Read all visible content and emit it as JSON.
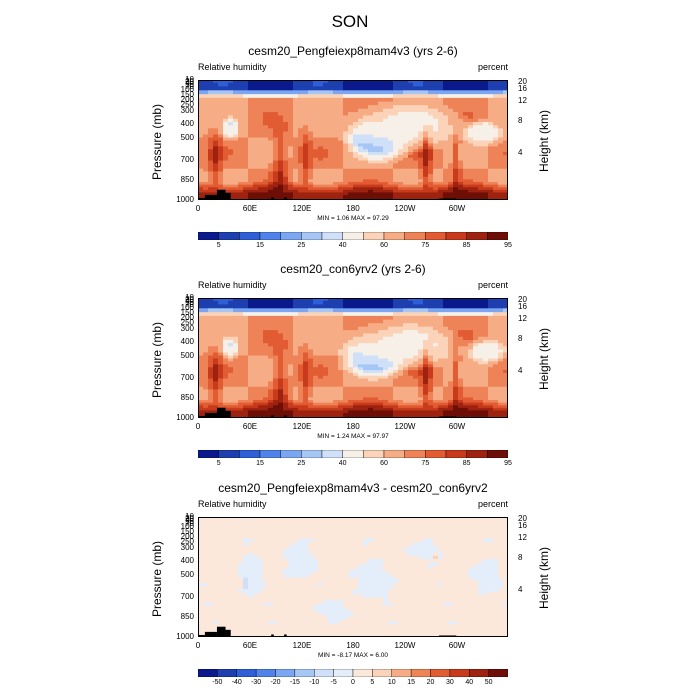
{
  "title": "SON",
  "colors": {
    "seq": [
      "#0a1a8c",
      "#1d3fb0",
      "#2f5fd6",
      "#4f83ea",
      "#7aa6f2",
      "#a6c6f6",
      "#cfe0f8",
      "#f6f0e8",
      "#fbd3b8",
      "#f6ac84",
      "#ee8358",
      "#e15b33",
      "#c83a1c",
      "#9e2210",
      "#6d0f07"
    ],
    "diff": [
      "#0a1a8c",
      "#1d3fb0",
      "#2f5fd6",
      "#4f83ea",
      "#7aa6f2",
      "#a6c6f6",
      "#cfe0f8",
      "#e4eefb",
      "#fbe8da",
      "#fbd3b8",
      "#f6ac84",
      "#ee8358",
      "#e15b33",
      "#c83a1c",
      "#9e2210",
      "#6d0f07"
    ],
    "terrain": "#000000"
  },
  "chart_data": [
    {
      "type": "heatmap",
      "panel_id": "p1",
      "title": "cesm20_Pengfeiexp8mam4v3 (yrs 2-6)",
      "left_label": "Relative humidity",
      "right_label": "percent",
      "ylabel": "Pressure (mb)",
      "y2label": "Height (km)",
      "x_ticks": [
        "0",
        "60E",
        "120E",
        "180",
        "120W",
        "60W"
      ],
      "y_ticks": [
        "10",
        "20",
        "30",
        "50",
        "70",
        "100",
        "150",
        "200",
        "250",
        "300",
        "400",
        "500",
        "700",
        "850",
        "1000"
      ],
      "y2_ticks": [
        "20",
        "16",
        "12",
        "8",
        "4"
      ],
      "min": 1.06,
      "max": 97.29,
      "minmax_text": "MIN =   1.06  MAX =  97.29",
      "colorbar_labels": [
        "5",
        "15",
        "25",
        "40",
        "60",
        "75",
        "85",
        "95"
      ],
      "features": [
        {
          "kind": "background",
          "value": 70
        },
        {
          "kind": "blob",
          "lon": 205,
          "p": 430,
          "rlon": 30,
          "rp": 140,
          "value": 10
        },
        {
          "kind": "blob",
          "lon": 210,
          "p": 450,
          "rlon": 45,
          "rp": 220,
          "value": 30
        },
        {
          "kind": "blob",
          "lon": 240,
          "p": 350,
          "rlon": 80,
          "rp": 200,
          "value": 45
        },
        {
          "kind": "blob",
          "lon": 38,
          "p": 360,
          "rlon": 8,
          "rp": 70,
          "value": 20
        },
        {
          "kind": "blob",
          "lon": 38,
          "p": 360,
          "rlon": 14,
          "rp": 110,
          "value": 45
        },
        {
          "kind": "blob",
          "lon": 330,
          "p": 380,
          "rlon": 20,
          "rp": 80,
          "value": 20
        },
        {
          "kind": "blob",
          "lon": 330,
          "p": 400,
          "rlon": 30,
          "rp": 120,
          "value": 45
        },
        {
          "kind": "column",
          "lon": 20,
          "width": 12,
          "value": 85
        },
        {
          "kind": "column",
          "lon": 95,
          "width": 14,
          "value": 88
        },
        {
          "kind": "column",
          "lon": 125,
          "width": 10,
          "value": 82
        },
        {
          "kind": "column",
          "lon": 265,
          "width": 10,
          "value": 88
        },
        {
          "kind": "column",
          "lon": 300,
          "width": 8,
          "value": 85
        },
        {
          "kind": "boundary",
          "value": 90
        },
        {
          "kind": "strat",
          "value": 5
        }
      ],
      "terrain": [
        {
          "lon0": 0,
          "lon1": 8,
          "p": 980
        },
        {
          "lon0": 8,
          "lon1": 22,
          "p": 950
        },
        {
          "lon0": 22,
          "lon1": 32,
          "p": 900
        },
        {
          "lon0": 32,
          "lon1": 38,
          "p": 930
        },
        {
          "lon0": 85,
          "lon1": 88,
          "p": 975
        },
        {
          "lon0": 100,
          "lon1": 103,
          "p": 975
        },
        {
          "lon0": 280,
          "lon1": 300,
          "p": 985
        }
      ]
    },
    {
      "type": "heatmap",
      "panel_id": "p2",
      "title": "cesm20_con6yrv2 (yrs 2-6)",
      "left_label": "Relative humidity",
      "right_label": "percent",
      "ylabel": "Pressure (mb)",
      "y2label": "Height (km)",
      "x_ticks": [
        "0",
        "60E",
        "120E",
        "180",
        "120W",
        "60W"
      ],
      "y_ticks": [
        "10",
        "20",
        "30",
        "50",
        "70",
        "100",
        "150",
        "200",
        "250",
        "300",
        "400",
        "500",
        "700",
        "850",
        "1000"
      ],
      "y2_ticks": [
        "20",
        "16",
        "12",
        "8",
        "4"
      ],
      "min": 1.24,
      "max": 97.97,
      "minmax_text": "MIN =   1.24  MAX =  97.97",
      "colorbar_labels": [
        "5",
        "15",
        "25",
        "40",
        "60",
        "75",
        "85",
        "95"
      ],
      "features": [
        {
          "kind": "background",
          "value": 70
        },
        {
          "kind": "blob",
          "lon": 205,
          "p": 450,
          "rlon": 30,
          "rp": 130,
          "value": 10
        },
        {
          "kind": "blob",
          "lon": 205,
          "p": 450,
          "rlon": 45,
          "rp": 210,
          "value": 30
        },
        {
          "kind": "blob",
          "lon": 235,
          "p": 360,
          "rlon": 80,
          "rp": 200,
          "value": 45
        },
        {
          "kind": "blob",
          "lon": 38,
          "p": 370,
          "rlon": 8,
          "rp": 70,
          "value": 20
        },
        {
          "kind": "blob",
          "lon": 38,
          "p": 370,
          "rlon": 14,
          "rp": 110,
          "value": 45
        },
        {
          "kind": "blob",
          "lon": 335,
          "p": 400,
          "rlon": 18,
          "rp": 80,
          "value": 20
        },
        {
          "kind": "blob",
          "lon": 335,
          "p": 400,
          "rlon": 28,
          "rp": 120,
          "value": 45
        },
        {
          "kind": "column",
          "lon": 20,
          "width": 12,
          "value": 85
        },
        {
          "kind": "column",
          "lon": 95,
          "width": 14,
          "value": 88
        },
        {
          "kind": "column",
          "lon": 125,
          "width": 10,
          "value": 82
        },
        {
          "kind": "column",
          "lon": 265,
          "width": 10,
          "value": 88
        },
        {
          "kind": "column",
          "lon": 300,
          "width": 8,
          "value": 85
        },
        {
          "kind": "boundary",
          "value": 90
        },
        {
          "kind": "strat",
          "value": 5
        }
      ],
      "terrain": [
        {
          "lon0": 0,
          "lon1": 8,
          "p": 980
        },
        {
          "lon0": 8,
          "lon1": 22,
          "p": 950
        },
        {
          "lon0": 22,
          "lon1": 32,
          "p": 900
        },
        {
          "lon0": 32,
          "lon1": 38,
          "p": 930
        },
        {
          "lon0": 85,
          "lon1": 88,
          "p": 975
        },
        {
          "lon0": 100,
          "lon1": 103,
          "p": 975
        },
        {
          "lon0": 280,
          "lon1": 300,
          "p": 985
        }
      ]
    },
    {
      "type": "heatmap",
      "panel_id": "p3",
      "title": "cesm20_Pengfeiexp8mam4v3 - cesm20_con6yrv2",
      "left_label": "Relative humidity",
      "right_label": "percent",
      "ylabel": "Pressure (mb)",
      "y2label": "Height (km)",
      "x_ticks": [
        "0",
        "60E",
        "120E",
        "180",
        "120W",
        "60W"
      ],
      "y_ticks": [
        "10",
        "20",
        "30",
        "50",
        "70",
        "100",
        "150",
        "200",
        "250",
        "300",
        "400",
        "500",
        "700",
        "850",
        "1000"
      ],
      "y2_ticks": [
        "20",
        "16",
        "12",
        "8",
        "4"
      ],
      "min": -8.17,
      "max": 6.0,
      "minmax_text": "MIN =  -8.17  MAX =   6.00",
      "colorbar_labels": [
        "-50",
        "-40",
        "-30",
        "-20",
        "-15",
        "-10",
        "-5",
        "0",
        "5",
        "10",
        "15",
        "20",
        "30",
        "40",
        "50"
      ],
      "features": [
        {
          "kind": "background",
          "value": 2
        },
        {
          "kind": "blob",
          "lon": 60,
          "p": 450,
          "rlon": 18,
          "rp": 250,
          "value": -3
        },
        {
          "kind": "blob",
          "lon": 115,
          "p": 350,
          "rlon": 25,
          "rp": 200,
          "value": -3
        },
        {
          "kind": "blob",
          "lon": 200,
          "p": 500,
          "rlon": 40,
          "rp": 200,
          "value": -2
        },
        {
          "kind": "blob",
          "lon": 160,
          "p": 750,
          "rlon": 30,
          "rp": 100,
          "value": -2
        },
        {
          "kind": "blob",
          "lon": 330,
          "p": 450,
          "rlon": 25,
          "rp": 200,
          "value": -2
        },
        {
          "kind": "blob",
          "lon": 260,
          "p": 250,
          "rlon": 30,
          "rp": 80,
          "value": -2
        },
        {
          "kind": "blob",
          "lon": 55,
          "p": 500,
          "rlon": 4,
          "rp": 80,
          "value": -8
        },
        {
          "kind": "blob",
          "lon": 275,
          "p": 300,
          "rlon": 4,
          "rp": 40,
          "value": 7
        }
      ],
      "terrain": [
        {
          "lon0": 0,
          "lon1": 8,
          "p": 980
        },
        {
          "lon0": 8,
          "lon1": 22,
          "p": 950
        },
        {
          "lon0": 22,
          "lon1": 32,
          "p": 900
        },
        {
          "lon0": 32,
          "lon1": 38,
          "p": 930
        },
        {
          "lon0": 85,
          "lon1": 88,
          "p": 975
        },
        {
          "lon0": 100,
          "lon1": 103,
          "p": 975
        },
        {
          "lon0": 280,
          "lon1": 300,
          "p": 985
        }
      ]
    }
  ]
}
